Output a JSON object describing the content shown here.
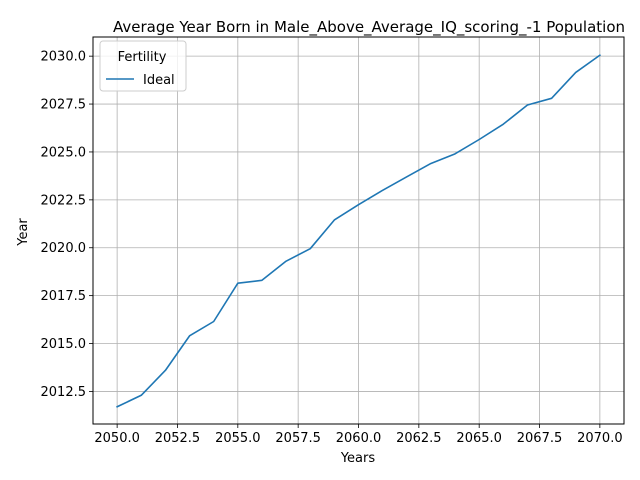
{
  "chart_data": {
    "type": "line",
    "title": "Average Year Born in Male_Above_Average_IQ_scoring_-1 Population",
    "xlabel": "Years",
    "ylabel": "Year",
    "xlim": [
      2049.0,
      2071.0
    ],
    "ylim": [
      2010.8,
      2031.0
    ],
    "xticks": [
      2050.0,
      2052.5,
      2055.0,
      2057.5,
      2060.0,
      2062.5,
      2065.0,
      2067.5,
      2070.0
    ],
    "xtick_labels": [
      "2050.0",
      "2052.5",
      "2055.0",
      "2057.5",
      "2060.0",
      "2062.5",
      "2065.0",
      "2067.5",
      "2070.0"
    ],
    "yticks": [
      2012.5,
      2015.0,
      2017.5,
      2020.0,
      2022.5,
      2025.0,
      2027.5,
      2030.0
    ],
    "ytick_labels": [
      "2012.5",
      "2015.0",
      "2017.5",
      "2020.0",
      "2022.5",
      "2025.0",
      "2027.5",
      "2030.0"
    ],
    "grid": true,
    "legend": {
      "title": "Fertility",
      "placement": "top-left"
    },
    "series": [
      {
        "name": "Ideal",
        "color": "#1f77b4",
        "x": [
          2050,
          2051,
          2052,
          2053,
          2054,
          2055,
          2056,
          2057,
          2058,
          2059,
          2060,
          2061,
          2062,
          2063,
          2064,
          2065,
          2066,
          2067,
          2068,
          2069,
          2070
        ],
        "y": [
          2011.7,
          2012.3,
          2013.6,
          2015.4,
          2016.15,
          2018.15,
          2018.3,
          2019.3,
          2019.95,
          2021.45,
          2022.25,
          2023.0,
          2023.7,
          2024.4,
          2024.9,
          2025.65,
          2026.45,
          2027.45,
          2027.8,
          2029.15,
          2030.05
        ]
      }
    ]
  }
}
